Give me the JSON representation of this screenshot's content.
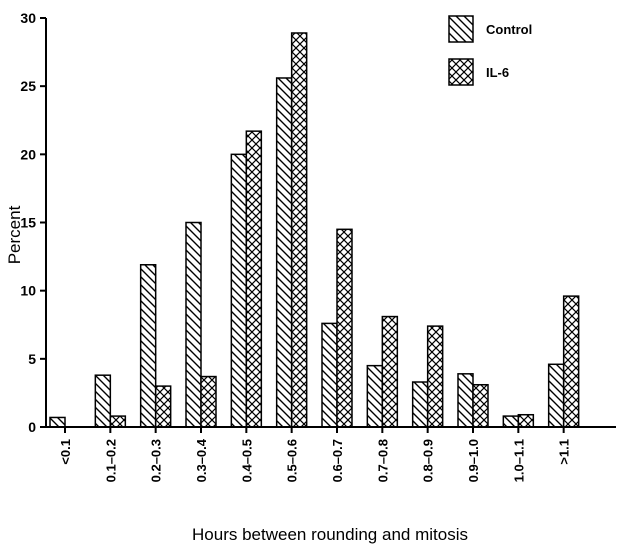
{
  "chart_data": {
    "type": "bar",
    "title": "",
    "xlabel": "Hours between rounding and mitosis",
    "ylabel": "Percent",
    "ylim": [
      0,
      30
    ],
    "yticks": [
      0,
      5,
      10,
      15,
      20,
      25,
      30
    ],
    "grid": false,
    "legend_position": "top-right",
    "categories": [
      "<0.1",
      "0.1–0.2",
      "0.2–0.3",
      "0.3–0.4",
      "0.4–0.5",
      "0.5–0.6",
      "0.6–0.7",
      "0.7–0.8",
      "0.8–0.9",
      "0.9–1.0",
      "1.0–1.1",
      ">1.1"
    ],
    "series": [
      {
        "name": "Control",
        "pattern": "diagonal-hatch",
        "values": [
          0.7,
          3.8,
          11.9,
          15.0,
          20.0,
          25.6,
          7.6,
          4.5,
          3.3,
          3.9,
          0.8,
          4.6
        ]
      },
      {
        "name": "IL-6",
        "pattern": "cross-hatch",
        "values": [
          0,
          0.8,
          3.0,
          3.7,
          21.7,
          28.9,
          14.5,
          8.1,
          7.4,
          3.1,
          0.9,
          9.6
        ]
      }
    ]
  }
}
